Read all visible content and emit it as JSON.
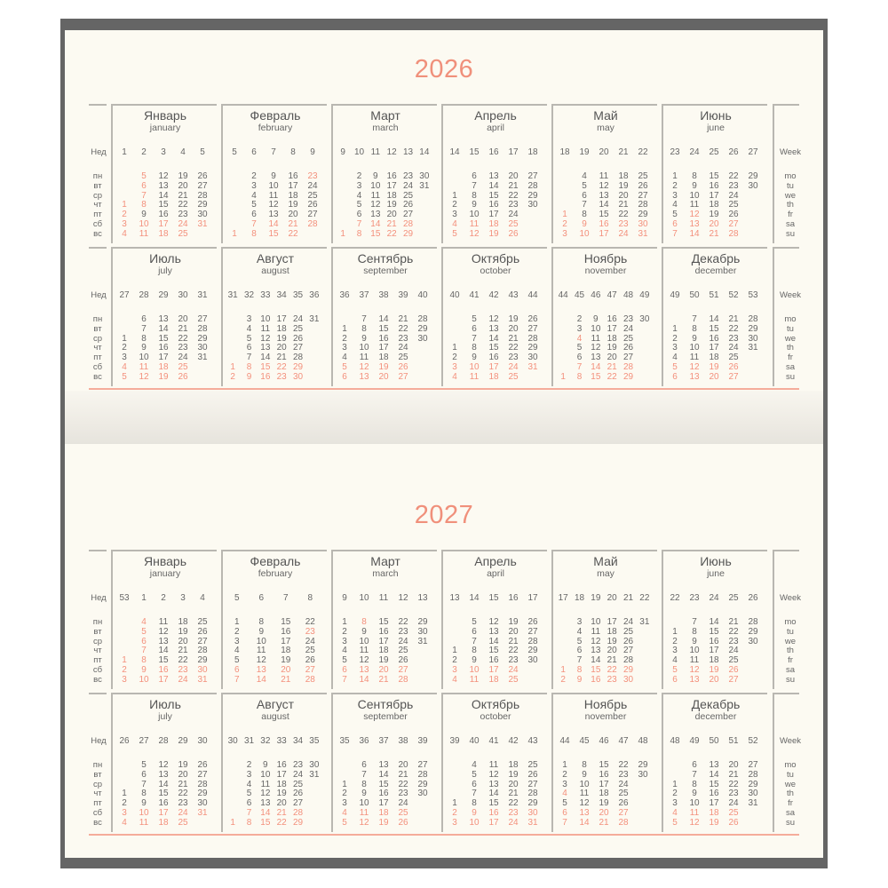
{
  "colors": {
    "accent": "#f3907c",
    "text": "#666666",
    "frame": "#656565",
    "paper": "#fcfaf2"
  },
  "labels": {
    "week_ru": "Нед",
    "week_en": "Week",
    "weekdays_ru": [
      "пн",
      "вт",
      "ср",
      "чт",
      "пт",
      "сб",
      "вс"
    ],
    "weekdays_en": [
      "mo",
      "tu",
      "we",
      "th",
      "fr",
      "sa",
      "su"
    ]
  },
  "years": [
    {
      "title": "2026",
      "months": [
        {
          "ru": "Январь",
          "en": "january",
          "weeks": [
            1,
            2,
            3,
            4,
            5
          ],
          "offset": 3,
          "holidays": [
            1,
            2,
            5,
            6,
            7,
            8
          ],
          "days": [
            1,
            2,
            3,
            4,
            5,
            6,
            7,
            8,
            9,
            10,
            11,
            12,
            13,
            14,
            15,
            16,
            17,
            18,
            19,
            20,
            21,
            22,
            23,
            24,
            25,
            26,
            27,
            28,
            29,
            30,
            31
          ]
        },
        {
          "ru": "Февраль",
          "en": "february",
          "weeks": [
            5,
            6,
            7,
            8,
            9
          ],
          "offset": 6,
          "holidays": [
            23
          ],
          "days": [
            1,
            2,
            3,
            4,
            5,
            6,
            7,
            8,
            9,
            10,
            11,
            12,
            13,
            14,
            15,
            16,
            17,
            18,
            19,
            20,
            21,
            22,
            23,
            24,
            25,
            26,
            27,
            28
          ]
        },
        {
          "ru": "Март",
          "en": "march",
          "weeks": [
            9,
            10,
            11,
            12,
            13,
            14
          ],
          "offset": 6,
          "holidays": [],
          "days": [
            1,
            2,
            3,
            4,
            5,
            6,
            7,
            8,
            9,
            10,
            11,
            12,
            13,
            14,
            15,
            16,
            17,
            18,
            19,
            20,
            21,
            22,
            23,
            24,
            25,
            26,
            27,
            28,
            29,
            30,
            31
          ]
        },
        {
          "ru": "Апрель",
          "en": "april",
          "weeks": [
            14,
            15,
            16,
            17,
            18
          ],
          "offset": 2,
          "holidays": [],
          "days": [
            1,
            2,
            3,
            4,
            5,
            6,
            7,
            8,
            9,
            10,
            11,
            12,
            13,
            14,
            15,
            16,
            17,
            18,
            19,
            20,
            21,
            22,
            23,
            24,
            25,
            26,
            27,
            28,
            29,
            30
          ]
        },
        {
          "ru": "Май",
          "en": "may",
          "weeks": [
            18,
            19,
            20,
            21,
            22
          ],
          "offset": 4,
          "holidays": [
            1
          ],
          "days": [
            1,
            2,
            3,
            4,
            5,
            6,
            7,
            8,
            9,
            10,
            11,
            12,
            13,
            14,
            15,
            16,
            17,
            18,
            19,
            20,
            21,
            22,
            23,
            24,
            25,
            26,
            27,
            28,
            29,
            30,
            31
          ]
        },
        {
          "ru": "Июнь",
          "en": "june",
          "weeks": [
            23,
            24,
            25,
            26,
            27
          ],
          "offset": 0,
          "holidays": [
            12
          ],
          "days": [
            1,
            2,
            3,
            4,
            5,
            6,
            7,
            8,
            9,
            10,
            11,
            12,
            13,
            14,
            15,
            16,
            17,
            18,
            19,
            20,
            21,
            22,
            23,
            24,
            25,
            26,
            27,
            28,
            29,
            30
          ]
        },
        {
          "ru": "Июль",
          "en": "july",
          "weeks": [
            27,
            28,
            29,
            30,
            31
          ],
          "offset": 2,
          "holidays": [],
          "days": [
            1,
            2,
            3,
            4,
            5,
            6,
            7,
            8,
            9,
            10,
            11,
            12,
            13,
            14,
            15,
            16,
            17,
            18,
            19,
            20,
            21,
            22,
            23,
            24,
            25,
            26,
            27,
            28,
            29,
            30,
            31
          ]
        },
        {
          "ru": "Август",
          "en": "august",
          "weeks": [
            31,
            32,
            33,
            34,
            35,
            36
          ],
          "offset": 5,
          "holidays": [],
          "days": [
            1,
            2,
            3,
            4,
            5,
            6,
            7,
            8,
            9,
            10,
            11,
            12,
            13,
            14,
            15,
            16,
            17,
            18,
            19,
            20,
            21,
            22,
            23,
            24,
            25,
            26,
            27,
            28,
            29,
            30,
            31
          ]
        },
        {
          "ru": "Сентябрь",
          "en": "september",
          "weeks": [
            36,
            37,
            38,
            39,
            40
          ],
          "offset": 1,
          "holidays": [],
          "days": [
            1,
            2,
            3,
            4,
            5,
            6,
            7,
            8,
            9,
            10,
            11,
            12,
            13,
            14,
            15,
            16,
            17,
            18,
            19,
            20,
            21,
            22,
            23,
            24,
            25,
            26,
            27,
            28,
            29,
            30
          ]
        },
        {
          "ru": "Октябрь",
          "en": "october",
          "weeks": [
            40,
            41,
            42,
            43,
            44
          ],
          "offset": 3,
          "holidays": [],
          "days": [
            1,
            2,
            3,
            4,
            5,
            6,
            7,
            8,
            9,
            10,
            11,
            12,
            13,
            14,
            15,
            16,
            17,
            18,
            19,
            20,
            21,
            22,
            23,
            24,
            25,
            26,
            27,
            28,
            29,
            30,
            31
          ]
        },
        {
          "ru": "Ноябрь",
          "en": "november",
          "weeks": [
            44,
            45,
            46,
            47,
            48,
            49
          ],
          "offset": 6,
          "holidays": [
            4
          ],
          "days": [
            1,
            2,
            3,
            4,
            5,
            6,
            7,
            8,
            9,
            10,
            11,
            12,
            13,
            14,
            15,
            16,
            17,
            18,
            19,
            20,
            21,
            22,
            23,
            24,
            25,
            26,
            27,
            28,
            29,
            30
          ]
        },
        {
          "ru": "Декабрь",
          "en": "december",
          "weeks": [
            49,
            50,
            51,
            52,
            53
          ],
          "offset": 1,
          "holidays": [],
          "days": [
            1,
            2,
            3,
            4,
            5,
            6,
            7,
            8,
            9,
            10,
            11,
            12,
            13,
            14,
            15,
            16,
            17,
            18,
            19,
            20,
            21,
            22,
            23,
            24,
            25,
            26,
            27,
            28,
            29,
            30,
            31
          ]
        }
      ]
    },
    {
      "title": "2027",
      "months": [
        {
          "ru": "Январь",
          "en": "january",
          "weeks": [
            53,
            1,
            2,
            3,
            4
          ],
          "offset": 4,
          "holidays": [
            1,
            4,
            5,
            6,
            7,
            8
          ],
          "days": [
            1,
            2,
            3,
            4,
            5,
            6,
            7,
            8,
            9,
            10,
            11,
            12,
            13,
            14,
            15,
            16,
            17,
            18,
            19,
            20,
            21,
            22,
            23,
            24,
            25,
            26,
            27,
            28,
            29,
            30,
            31
          ]
        },
        {
          "ru": "Февраль",
          "en": "february",
          "weeks": [
            5,
            6,
            7,
            8
          ],
          "offset": 0,
          "holidays": [
            23
          ],
          "days": [
            1,
            2,
            3,
            4,
            5,
            6,
            7,
            8,
            9,
            10,
            11,
            12,
            13,
            14,
            15,
            16,
            17,
            18,
            19,
            20,
            21,
            22,
            23,
            24,
            25,
            26,
            27,
            28
          ]
        },
        {
          "ru": "Март",
          "en": "march",
          "weeks": [
            9,
            10,
            11,
            12,
            13
          ],
          "offset": 0,
          "holidays": [
            8
          ],
          "days": [
            1,
            2,
            3,
            4,
            5,
            6,
            7,
            8,
            9,
            10,
            11,
            12,
            13,
            14,
            15,
            16,
            17,
            18,
            19,
            20,
            21,
            22,
            23,
            24,
            25,
            26,
            27,
            28,
            29,
            30,
            31
          ]
        },
        {
          "ru": "Апрель",
          "en": "april",
          "weeks": [
            13,
            14,
            15,
            16,
            17
          ],
          "offset": 3,
          "holidays": [],
          "days": [
            1,
            2,
            3,
            4,
            5,
            6,
            7,
            8,
            9,
            10,
            11,
            12,
            13,
            14,
            15,
            16,
            17,
            18,
            19,
            20,
            21,
            22,
            23,
            24,
            25,
            26,
            27,
            28,
            29,
            30
          ]
        },
        {
          "ru": "Май",
          "en": "may",
          "weeks": [
            17,
            18,
            19,
            20,
            21,
            22
          ],
          "offset": 5,
          "holidays": [],
          "days": [
            1,
            2,
            3,
            4,
            5,
            6,
            7,
            8,
            9,
            10,
            11,
            12,
            13,
            14,
            15,
            16,
            17,
            18,
            19,
            20,
            21,
            22,
            23,
            24,
            25,
            26,
            27,
            28,
            29,
            30,
            31
          ]
        },
        {
          "ru": "Июнь",
          "en": "june",
          "weeks": [
            22,
            23,
            24,
            25,
            26
          ],
          "offset": 1,
          "holidays": [],
          "days": [
            1,
            2,
            3,
            4,
            5,
            6,
            7,
            8,
            9,
            10,
            11,
            12,
            13,
            14,
            15,
            16,
            17,
            18,
            19,
            20,
            21,
            22,
            23,
            24,
            25,
            26,
            27,
            28,
            29,
            30
          ]
        },
        {
          "ru": "Июль",
          "en": "july",
          "weeks": [
            26,
            27,
            28,
            29,
            30
          ],
          "offset": 3,
          "holidays": [],
          "days": [
            1,
            2,
            3,
            4,
            5,
            6,
            7,
            8,
            9,
            10,
            11,
            12,
            13,
            14,
            15,
            16,
            17,
            18,
            19,
            20,
            21,
            22,
            23,
            24,
            25,
            26,
            27,
            28,
            29,
            30,
            31
          ]
        },
        {
          "ru": "Август",
          "en": "august",
          "weeks": [
            30,
            31,
            32,
            33,
            34,
            35
          ],
          "offset": 6,
          "holidays": [],
          "days": [
            1,
            2,
            3,
            4,
            5,
            6,
            7,
            8,
            9,
            10,
            11,
            12,
            13,
            14,
            15,
            16,
            17,
            18,
            19,
            20,
            21,
            22,
            23,
            24,
            25,
            26,
            27,
            28,
            29,
            30,
            31
          ]
        },
        {
          "ru": "Сентябрь",
          "en": "september",
          "weeks": [
            35,
            36,
            37,
            38,
            39
          ],
          "offset": 2,
          "holidays": [],
          "days": [
            1,
            2,
            3,
            4,
            5,
            6,
            7,
            8,
            9,
            10,
            11,
            12,
            13,
            14,
            15,
            16,
            17,
            18,
            19,
            20,
            21,
            22,
            23,
            24,
            25,
            26,
            27,
            28,
            29,
            30
          ]
        },
        {
          "ru": "Октябрь",
          "en": "october",
          "weeks": [
            39,
            40,
            41,
            42,
            43
          ],
          "offset": 4,
          "holidays": [],
          "days": [
            1,
            2,
            3,
            4,
            5,
            6,
            7,
            8,
            9,
            10,
            11,
            12,
            13,
            14,
            15,
            16,
            17,
            18,
            19,
            20,
            21,
            22,
            23,
            24,
            25,
            26,
            27,
            28,
            29,
            30,
            31
          ]
        },
        {
          "ru": "Ноябрь",
          "en": "november",
          "weeks": [
            44,
            45,
            46,
            47,
            48
          ],
          "offset": 0,
          "holidays": [
            4
          ],
          "days": [
            1,
            2,
            3,
            4,
            5,
            6,
            7,
            8,
            9,
            10,
            11,
            12,
            13,
            14,
            15,
            16,
            17,
            18,
            19,
            20,
            21,
            22,
            23,
            24,
            25,
            26,
            27,
            28,
            29,
            30
          ]
        },
        {
          "ru": "Декабрь",
          "en": "december",
          "weeks": [
            48,
            49,
            50,
            51,
            52
          ],
          "offset": 2,
          "holidays": [],
          "days": [
            1,
            2,
            3,
            4,
            5,
            6,
            7,
            8,
            9,
            10,
            11,
            12,
            13,
            14,
            15,
            16,
            17,
            18,
            19,
            20,
            21,
            22,
            23,
            24,
            25,
            26,
            27,
            28,
            29,
            30,
            31
          ]
        }
      ]
    }
  ]
}
